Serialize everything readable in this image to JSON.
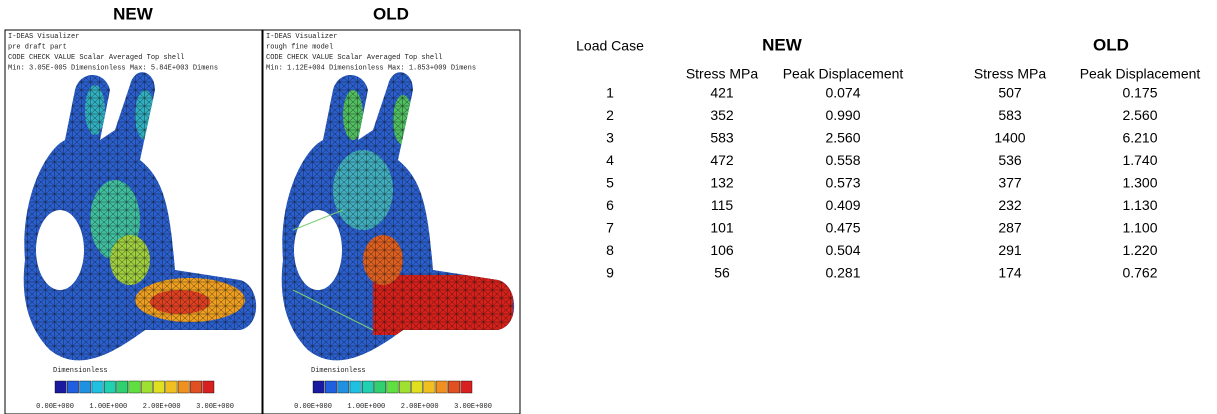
{
  "panels": [
    {
      "header": "NEW",
      "lines": [
        "I-DEAS Visualizer",
        "pre draft part",
        "CODE CHECK VALUE  Scalar  Averaged  Top shell",
        "Min: 3.05E-005 Dimensionless  Max: 5.84E+003 Dimens"
      ],
      "legend_title": "Dimensionless",
      "scale_labels": [
        "0.00E+000",
        "1.00E+000",
        "2.00E+000",
        "3.00E+000"
      ]
    },
    {
      "header": "OLD",
      "lines": [
        "I-DEAS Visualizer",
        "rough fine model",
        "CODE CHECK VALUE  Scalar  Averaged  Top shell",
        "Min: 1.12E+004 Dimensionless  Max: 1.853+009 Dimens"
      ],
      "legend_title": "Dimensionless",
      "scale_labels": [
        "0.00E+000",
        "1.00E+000",
        "2.00E+000",
        "3.00E+000"
      ]
    }
  ],
  "table": {
    "corner": "Load Case",
    "groups": [
      "NEW",
      "OLD"
    ],
    "columns": [
      "Stress MPa",
      "Peak Displacement",
      "Stress MPa",
      "Peak Displacement"
    ],
    "rows": [
      [
        "1",
        "421",
        "0.074",
        "507",
        "0.175"
      ],
      [
        "2",
        "352",
        "0.990",
        "583",
        "2.560"
      ],
      [
        "3",
        "583",
        "2.560",
        "1400",
        "6.210"
      ],
      [
        "4",
        "472",
        "0.558",
        "536",
        "1.740"
      ],
      [
        "5",
        "132",
        "0.573",
        "377",
        "1.300"
      ],
      [
        "6",
        "115",
        "0.409",
        "232",
        "1.130"
      ],
      [
        "7",
        "101",
        "0.475",
        "287",
        "1.100"
      ],
      [
        "8",
        "106",
        "0.504",
        "291",
        "1.220"
      ],
      [
        "9",
        "56",
        "0.281",
        "174",
        "0.762"
      ]
    ]
  }
}
